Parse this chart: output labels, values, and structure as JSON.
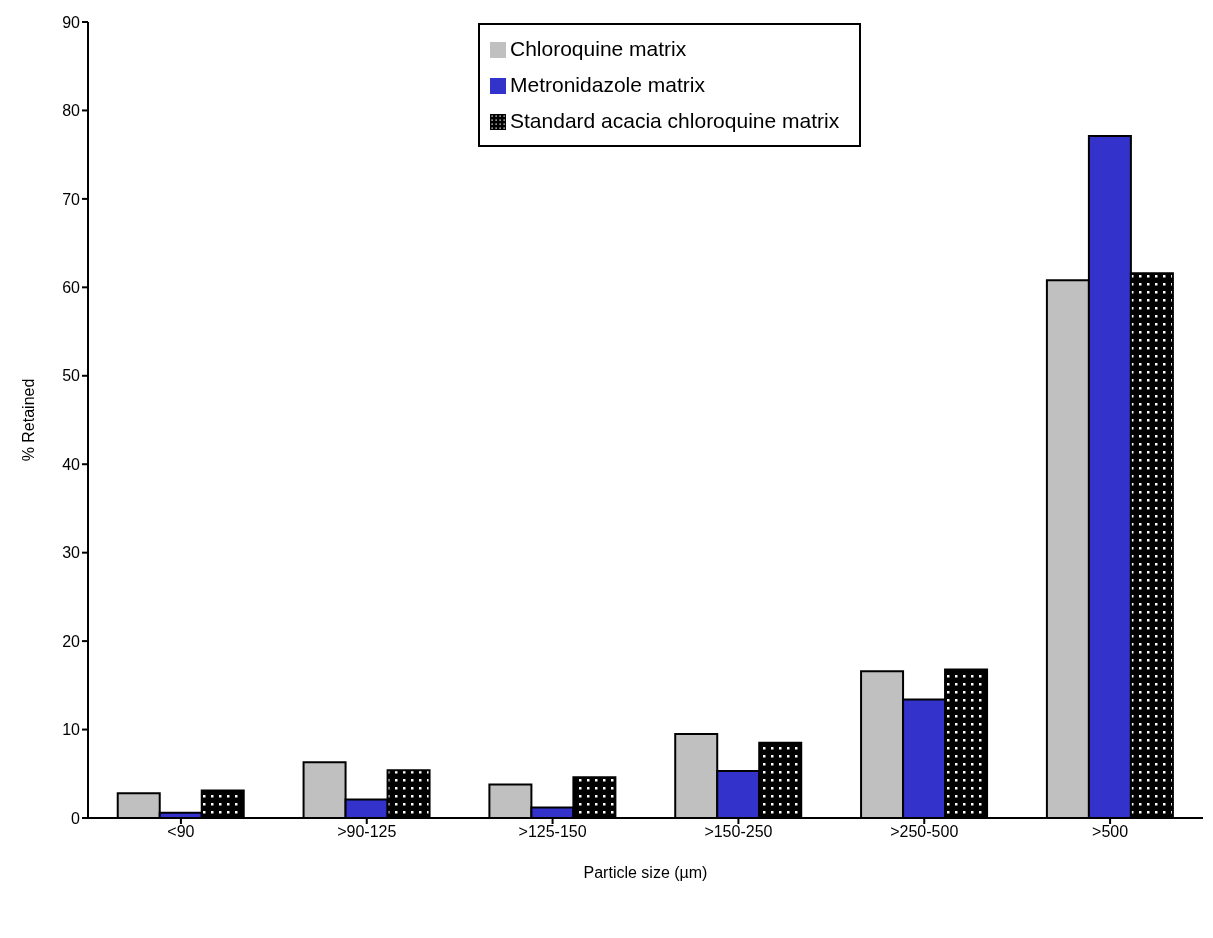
{
  "chart_data": {
    "type": "bar",
    "xlabel": "Particle size (µm)",
    "ylabel": "% Retained",
    "categories": [
      "<90",
      ">90-125",
      ">125-150",
      ">150-250",
      ">250-500",
      ">500"
    ],
    "series": [
      {
        "name": "Chloroquine matrix",
        "color": "#c0c0c0",
        "values": [
          2.8,
          6.3,
          3.8,
          9.5,
          16.6,
          60.8
        ]
      },
      {
        "name": "Metronidazole matrix",
        "color": "#3333cc",
        "values": [
          0.6,
          2.1,
          1.2,
          5.3,
          13.4,
          77.1
        ]
      },
      {
        "name": "Standard acacia chloroquine matrix",
        "color": "#000000",
        "values": [
          3.1,
          5.4,
          4.6,
          8.5,
          16.8,
          61.6
        ]
      }
    ],
    "ylim": [
      0,
      90
    ],
    "yticks": [
      0,
      10,
      20,
      30,
      40,
      50,
      60,
      70,
      80,
      90
    ],
    "grid": false,
    "legend": "top"
  }
}
